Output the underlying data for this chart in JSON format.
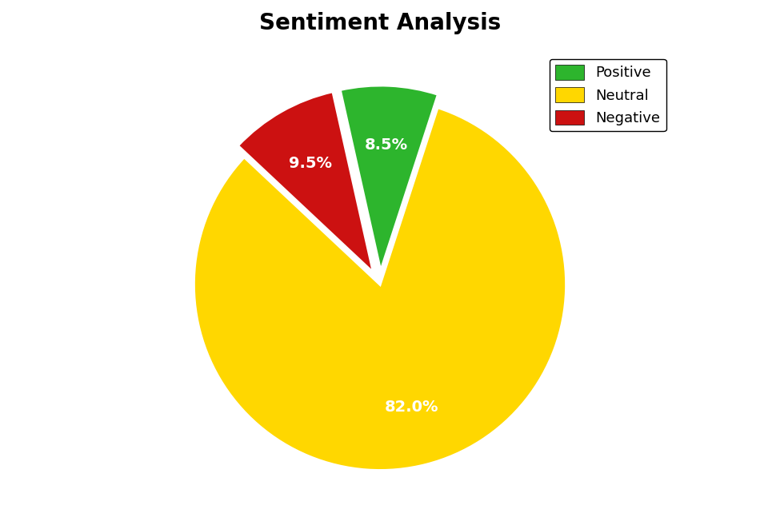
{
  "title": "Sentiment Analysis",
  "slices": [
    {
      "label": "Neutral",
      "value": 82.0,
      "color": "#FFD700",
      "explode": 0.0
    },
    {
      "label": "Negative",
      "value": 9.5,
      "color": "#CC1111",
      "explode": 0.07
    },
    {
      "label": "Positive",
      "value": 8.5,
      "color": "#2db52d",
      "explode": 0.07
    }
  ],
  "autopct_colors": [
    "white",
    "white",
    "white"
  ],
  "startangle": 72,
  "title_fontsize": 20,
  "label_fontsize": 14,
  "legend_fontsize": 13,
  "background_color": "#ffffff",
  "edge_color": "white",
  "edge_linewidth": 2.5,
  "pctdistance": 0.68,
  "legend_order": [
    "Positive",
    "Neutral",
    "Negative"
  ],
  "legend_colors": [
    "#2db52d",
    "#FFD700",
    "#CC1111"
  ]
}
